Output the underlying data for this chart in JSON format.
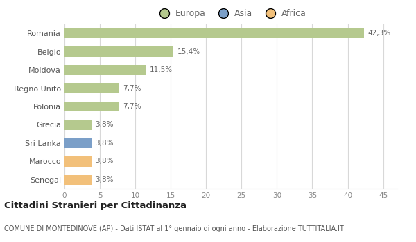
{
  "categories": [
    "Romania",
    "Belgio",
    "Moldova",
    "Regno Unito",
    "Polonia",
    "Grecia",
    "Sri Lanka",
    "Marocco",
    "Senegal"
  ],
  "values": [
    42.3,
    15.4,
    11.5,
    7.7,
    7.7,
    3.8,
    3.8,
    3.8,
    3.8
  ],
  "labels": [
    "42,3%",
    "15,4%",
    "11,5%",
    "7,7%",
    "7,7%",
    "3,8%",
    "3,8%",
    "3,8%",
    "3,8%"
  ],
  "colors": [
    "#b5c98e",
    "#b5c98e",
    "#b5c98e",
    "#b5c98e",
    "#b5c98e",
    "#b5c98e",
    "#7b9fc8",
    "#f2c07a",
    "#f2c07a"
  ],
  "legend_labels": [
    "Europa",
    "Asia",
    "Africa"
  ],
  "legend_colors": [
    "#b5c98e",
    "#7b9fc8",
    "#f2c07a"
  ],
  "xlim": [
    0,
    47
  ],
  "xticks": [
    0,
    5,
    10,
    15,
    20,
    25,
    30,
    35,
    40,
    45
  ],
  "title": "Cittadini Stranieri per Cittadinanza",
  "subtitle": "COMUNE DI MONTEDINOVE (AP) - Dati ISTAT al 1° gennaio di ogni anno - Elaborazione TUTTITALIA.IT",
  "background_color": "#ffffff",
  "grid_color": "#d8d8d8",
  "bar_height": 0.55
}
